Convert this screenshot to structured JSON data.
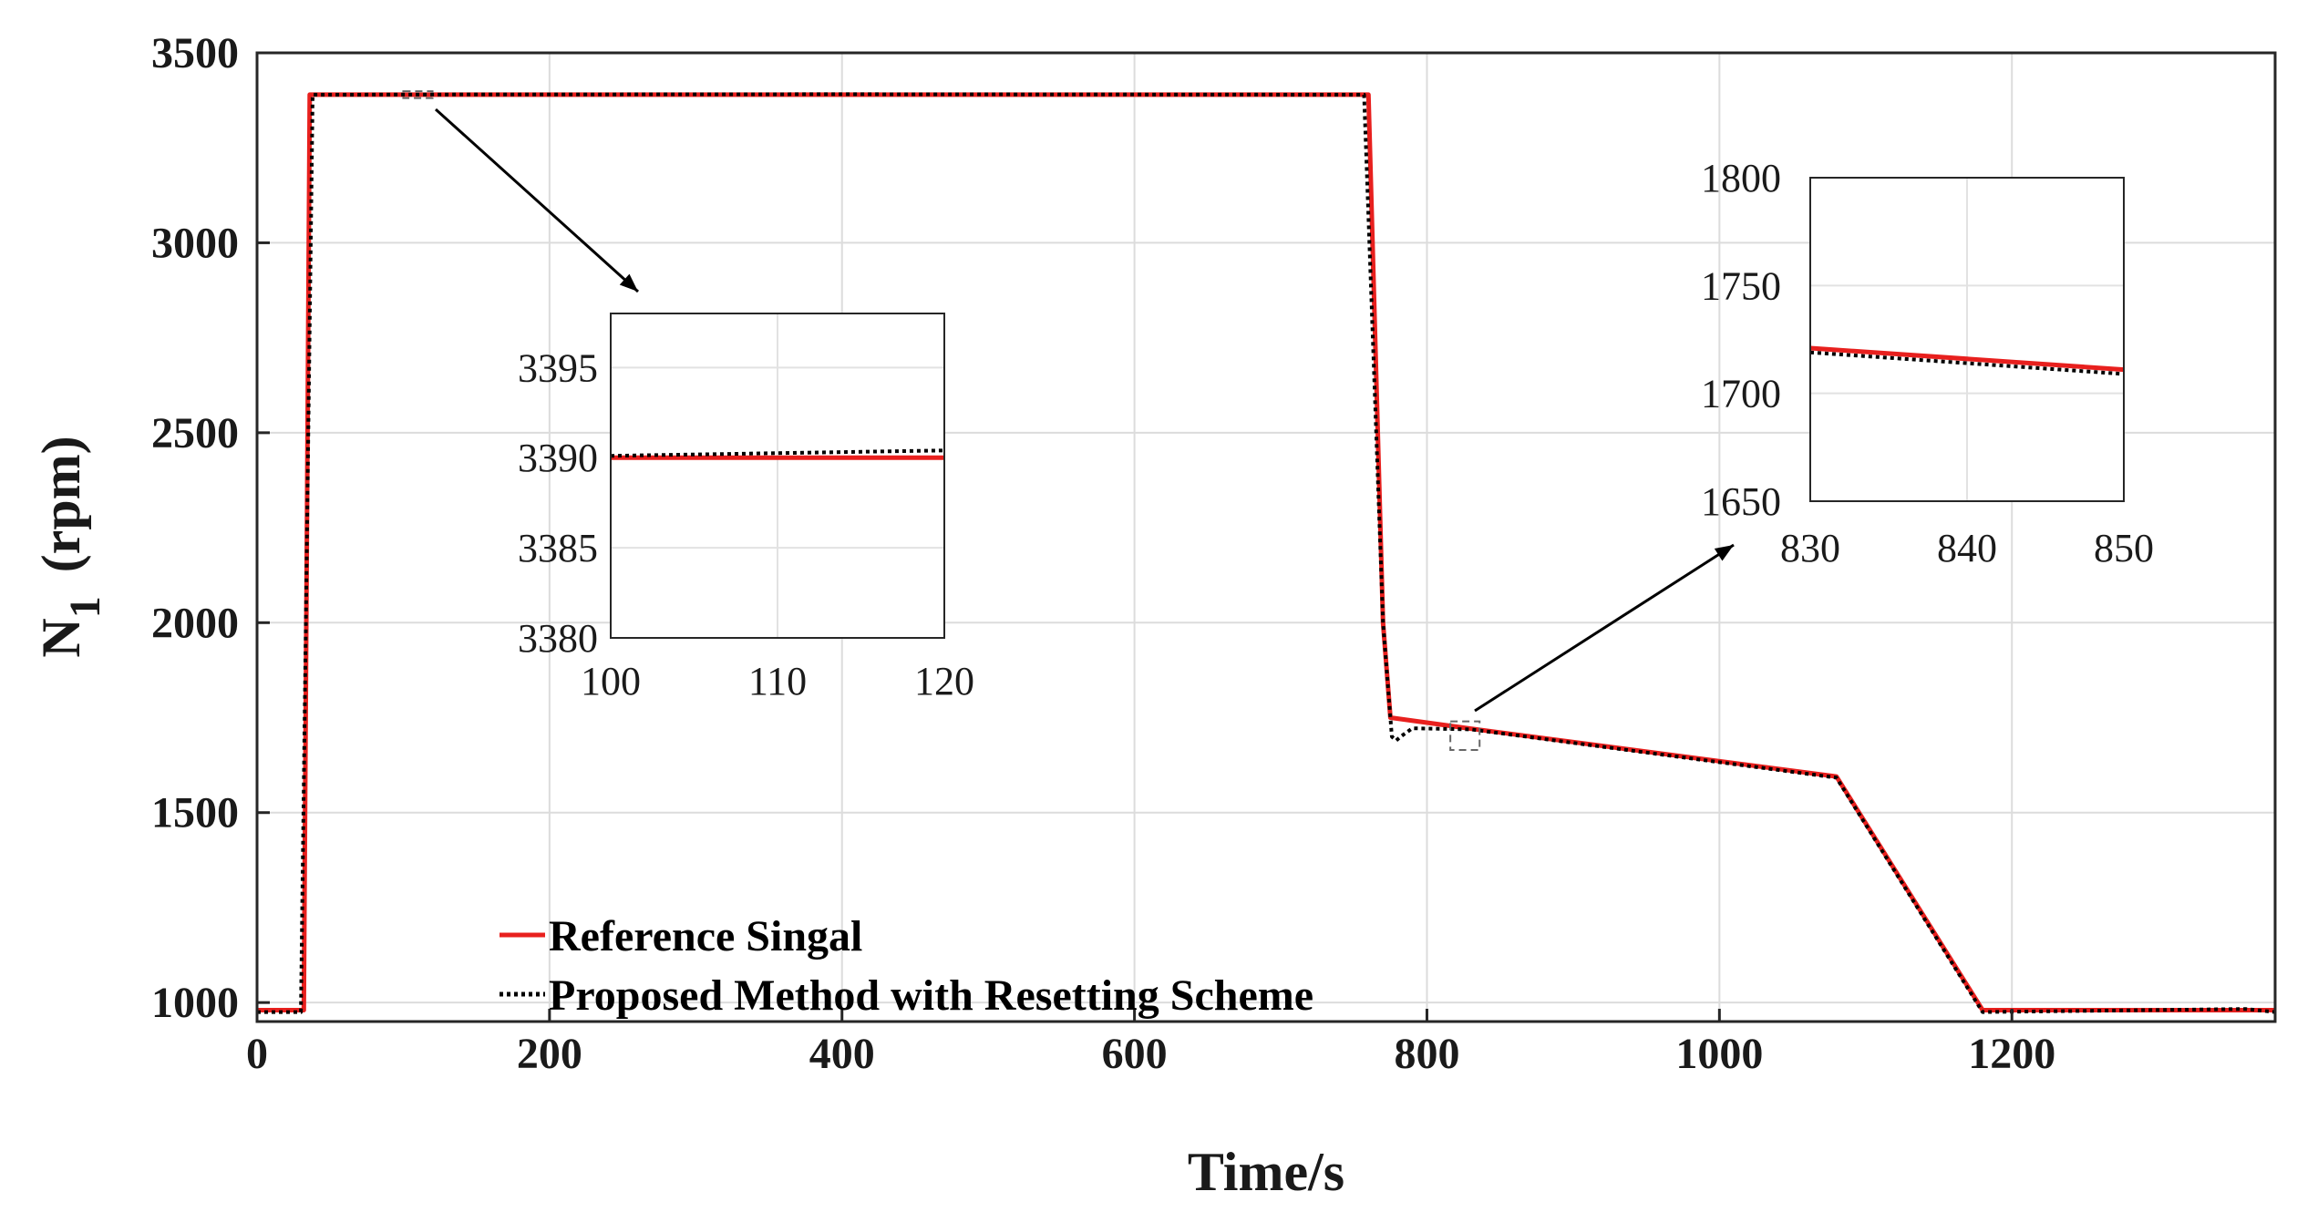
{
  "chart_data": {
    "type": "line",
    "title": "",
    "xlabel": "Time/s",
    "ylabel_main": "N",
    "ylabel_sub": "1",
    "ylabel_unit": "(rpm)",
    "xlim": [
      0,
      1380
    ],
    "ylim": [
      950,
      3500
    ],
    "xticks": [
      0,
      200,
      400,
      600,
      800,
      1000,
      1200
    ],
    "yticks": [
      1000,
      1500,
      2000,
      2500,
      3000,
      3500
    ],
    "grid": true,
    "legend_position": "bottom-center",
    "series": [
      {
        "name": "Reference Singal",
        "color": "#e8201e",
        "style": "solid",
        "x": [
          0,
          32,
          36,
          760,
          770,
          775,
          830,
          850,
          1080,
          1180,
          1380
        ],
        "y": [
          980,
          980,
          3390,
          3390,
          2000,
          1750,
          1721,
          1711,
          1595,
          980,
          980
        ]
      },
      {
        "name": "Proposed Method with Resetting Scheme",
        "color": "#000000",
        "style": "dotted",
        "x": [
          0,
          30,
          38,
          120,
          400,
          757,
          770,
          776,
          779,
          782,
          790,
          830,
          850,
          1080,
          1180,
          1360,
          1380
        ],
        "y": [
          975,
          975,
          3390,
          3390.3,
          3391,
          3390,
          2000,
          1700,
          1690,
          1700,
          1722,
          1719,
          1709,
          1592,
          975,
          983,
          975
        ]
      }
    ],
    "insets": [
      {
        "name": "inset-left",
        "xlim": [
          100,
          120
        ],
        "ylim": [
          3380,
          3398
        ],
        "xticks": [
          100,
          110,
          120
        ],
        "yticks": [
          3380,
          3385,
          3390,
          3395
        ],
        "source_window": {
          "x": [
            100,
            120
          ],
          "y": [
            3381,
            3399
          ]
        },
        "series": [
          {
            "name": "Reference Singal",
            "x": [
              100,
              120
            ],
            "y": [
              3390,
              3390
            ]
          },
          {
            "name": "Proposed Method with Resetting Scheme",
            "x": [
              100,
              120
            ],
            "y": [
              3390.1,
              3390.4
            ]
          }
        ]
      },
      {
        "name": "inset-right",
        "xlim": [
          830,
          850
        ],
        "ylim": [
          1650,
          1800
        ],
        "xticks": [
          830,
          840,
          850
        ],
        "yticks": [
          1650,
          1700,
          1750,
          1800
        ],
        "source_window": {
          "x": [
            816,
            836
          ],
          "y": [
            1665,
            1740
          ]
        },
        "series": [
          {
            "name": "Reference Singal",
            "x": [
              830,
              850
            ],
            "y": [
              1721,
              1711
            ]
          },
          {
            "name": "Proposed Method with Resetting Scheme",
            "x": [
              830,
              850
            ],
            "y": [
              1719,
              1709
            ]
          }
        ]
      }
    ]
  }
}
